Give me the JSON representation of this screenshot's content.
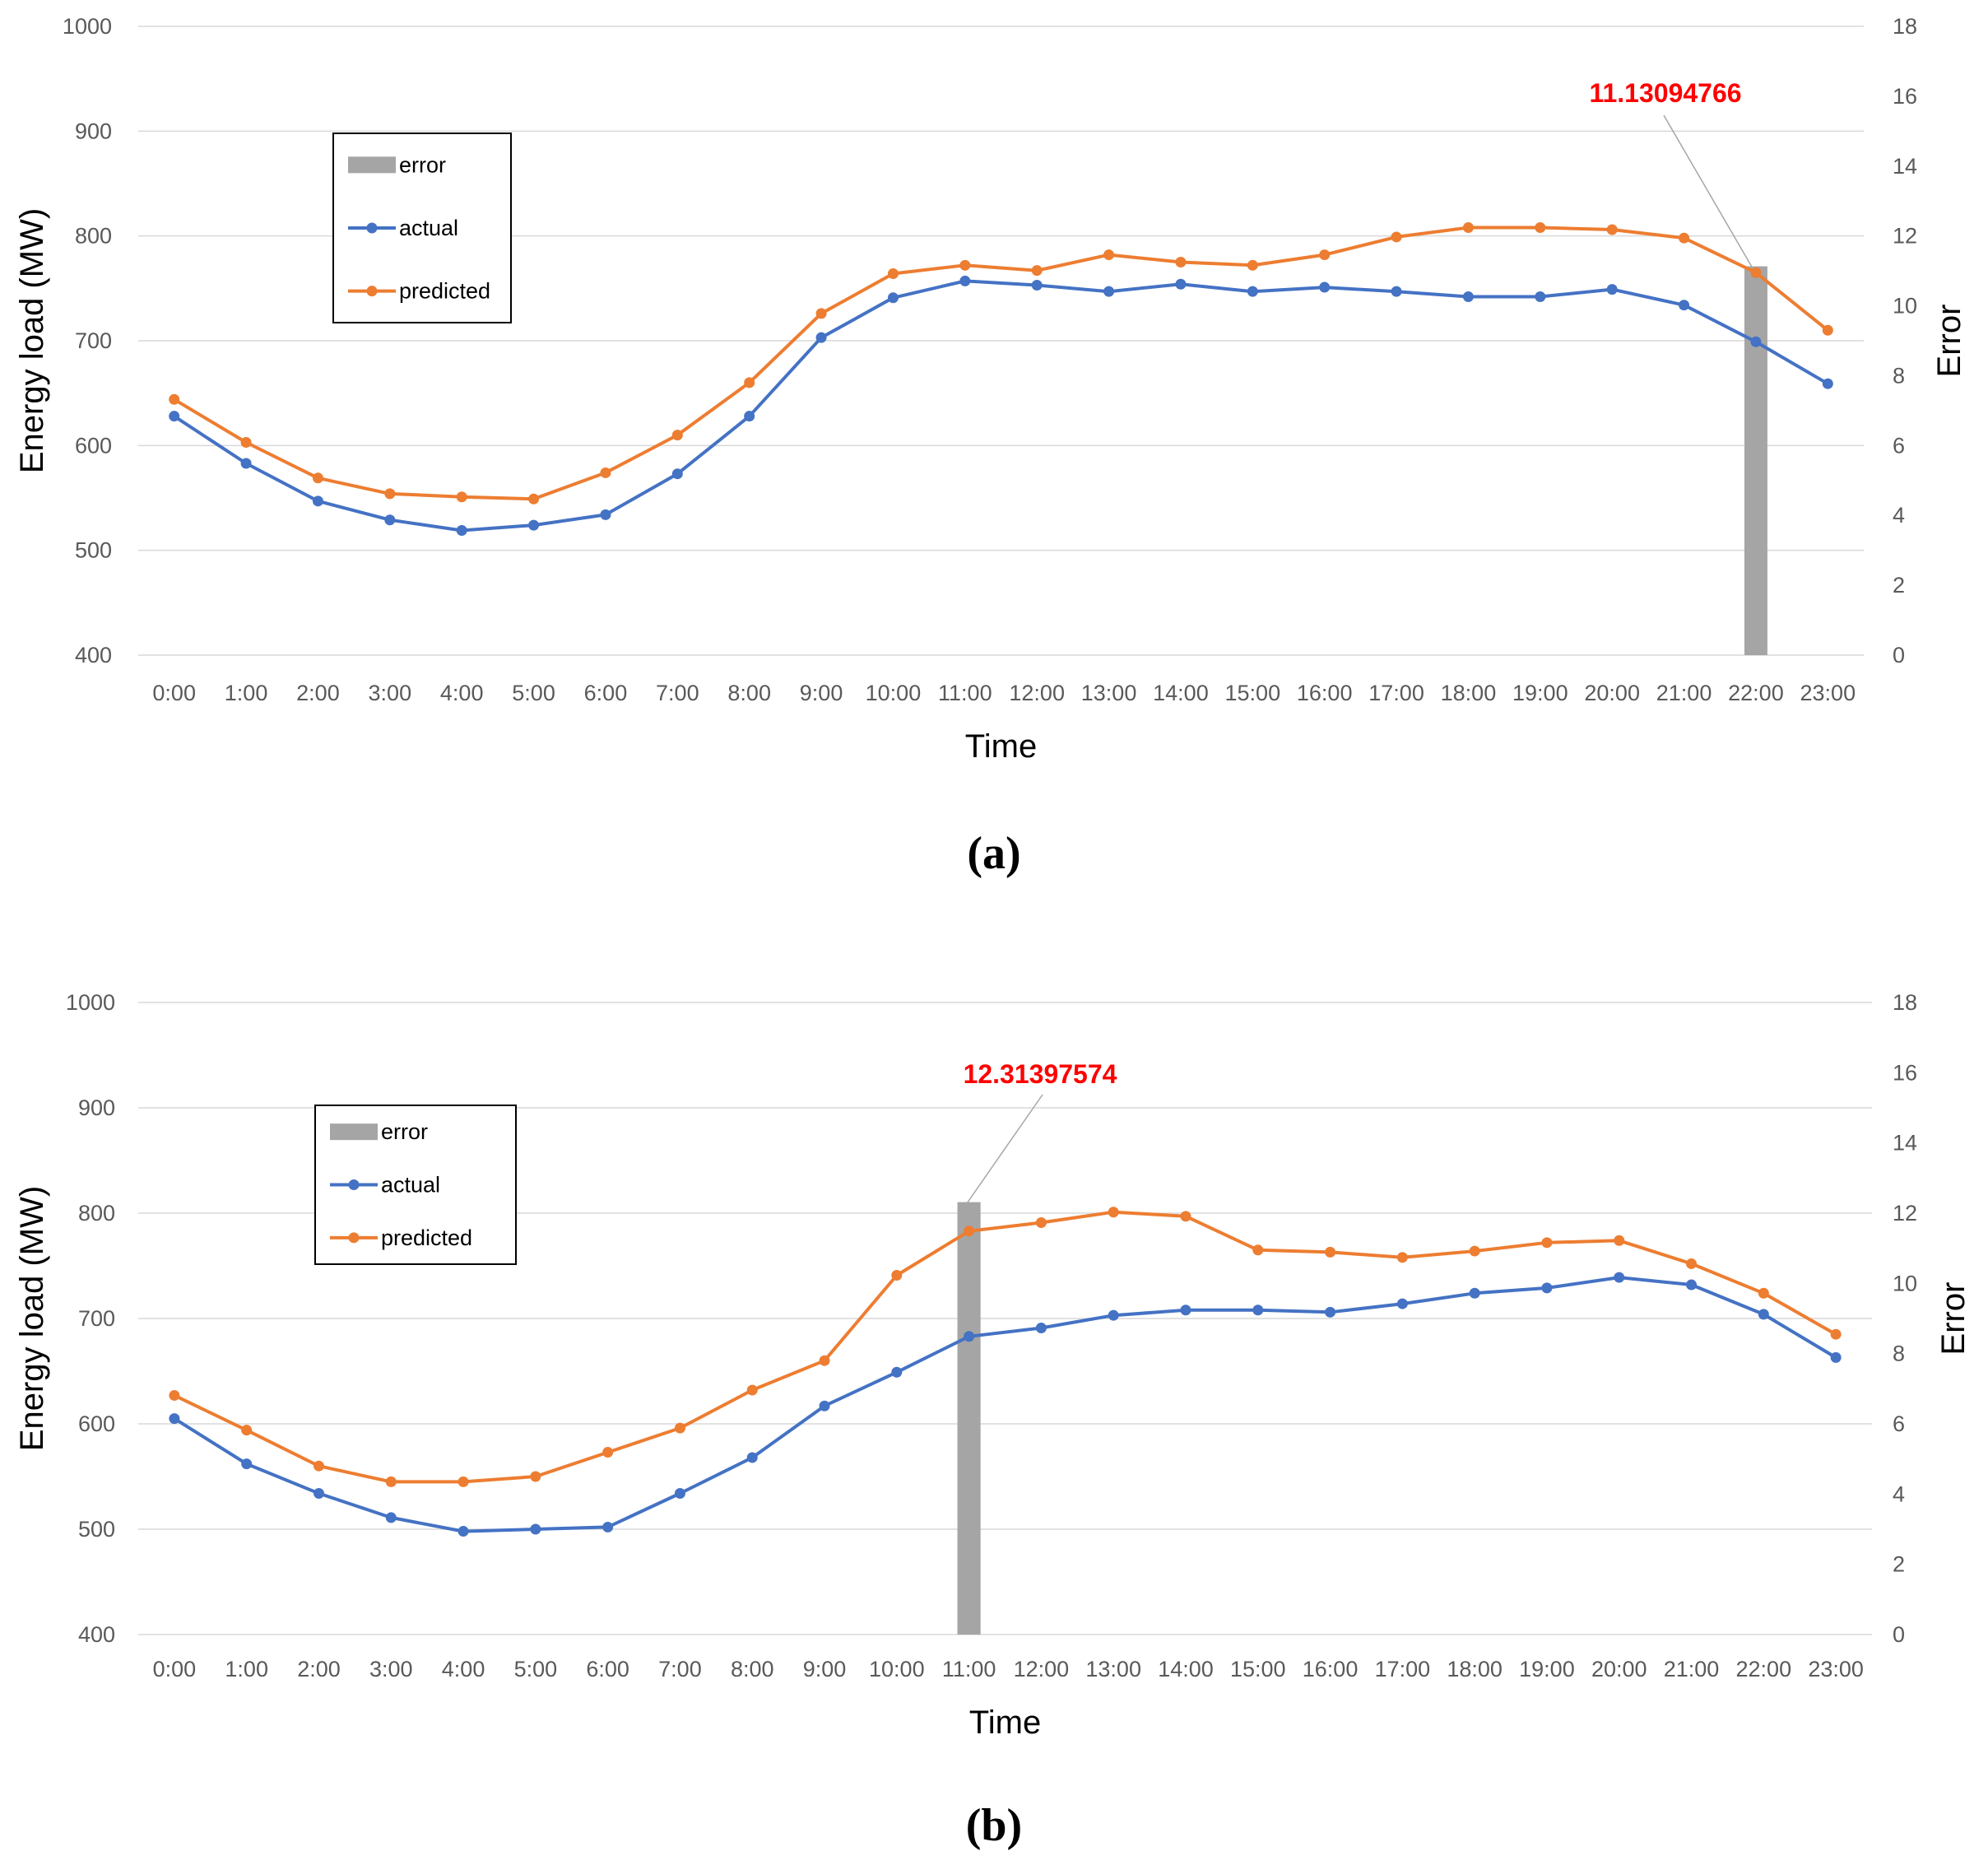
{
  "colors": {
    "actual": "#4472c4",
    "predicted": "#ed7d31",
    "error": "#a5a5a5",
    "annotation": "#ff0000",
    "grid": "#d9d9d9"
  },
  "chart_data": [
    {
      "type": "line",
      "panel_label": "(a)",
      "categories": [
        "0:00",
        "1:00",
        "2:00",
        "3:00",
        "4:00",
        "5:00",
        "6:00",
        "7:00",
        "8:00",
        "9:00",
        "10:00",
        "11:00",
        "12:00",
        "13:00",
        "14:00",
        "15:00",
        "16:00",
        "17:00",
        "18:00",
        "19:00",
        "20:00",
        "21:00",
        "22:00",
        "23:00"
      ],
      "series": [
        {
          "name": "actual",
          "values": [
            628,
            583,
            547,
            529,
            519,
            524,
            534,
            573,
            628,
            703,
            741,
            757,
            753,
            747,
            754,
            747,
            751,
            747,
            742,
            742,
            749,
            734,
            699,
            659
          ]
        },
        {
          "name": "predicted",
          "values": [
            644,
            603,
            569,
            554,
            551,
            549,
            574,
            610,
            660,
            726,
            764,
            772,
            767,
            782,
            775,
            772,
            782,
            799,
            808,
            808,
            806,
            798,
            765,
            710
          ]
        }
      ],
      "error_bar": {
        "name": "error",
        "category": "22:00",
        "value": 11.13094766
      },
      "annotation": "11.13094766",
      "xlabel": "Time",
      "ylabel": "Energy load  (MW)",
      "y2label": "Error",
      "ylim": [
        400,
        1000
      ],
      "y2lim": [
        0,
        18
      ],
      "yticks": [
        "1000",
        "900",
        "800",
        "700",
        "600",
        "500",
        "400"
      ],
      "y2ticks": [
        "18",
        "16",
        "14",
        "12",
        "10",
        "8",
        "6",
        "4",
        "2",
        "0"
      ],
      "legend": [
        "error",
        "actual",
        "predicted"
      ],
      "legend_position": "top-left"
    },
    {
      "type": "line",
      "panel_label": "(b)",
      "categories": [
        "0:00",
        "1:00",
        "2:00",
        "3:00",
        "4:00",
        "5:00",
        "6:00",
        "7:00",
        "8:00",
        "9:00",
        "10:00",
        "11:00",
        "12:00",
        "13:00",
        "14:00",
        "15:00",
        "16:00",
        "17:00",
        "18:00",
        "19:00",
        "20:00",
        "21:00",
        "22:00",
        "23:00"
      ],
      "series": [
        {
          "name": "actual",
          "values": [
            605,
            562,
            534,
            511,
            498,
            500,
            502,
            534,
            568,
            617,
            649,
            683,
            691,
            703,
            708,
            708,
            706,
            714,
            724,
            729,
            739,
            732,
            704,
            663
          ]
        },
        {
          "name": "predicted",
          "values": [
            627,
            594,
            560,
            545,
            545,
            550,
            573,
            596,
            632,
            660,
            741,
            783,
            791,
            801,
            797,
            765,
            763,
            758,
            764,
            772,
            774,
            752,
            724,
            685
          ]
        }
      ],
      "error_bar": {
        "name": "error",
        "category": "11:00",
        "value": 12.31397574
      },
      "annotation": "12.31397574",
      "xlabel": "Time",
      "ylabel": "Energy load  (MW)",
      "y2label": "Error",
      "ylim": [
        400,
        1000
      ],
      "y2lim": [
        0,
        18
      ],
      "yticks": [
        "1000",
        "900",
        "800",
        "700",
        "600",
        "500",
        "400"
      ],
      "y2ticks": [
        "18",
        "16",
        "14",
        "12",
        "10",
        "8",
        "6",
        "4",
        "2",
        "0"
      ],
      "legend": [
        "error",
        "actual",
        "predicted"
      ],
      "legend_position": "top-left"
    }
  ]
}
